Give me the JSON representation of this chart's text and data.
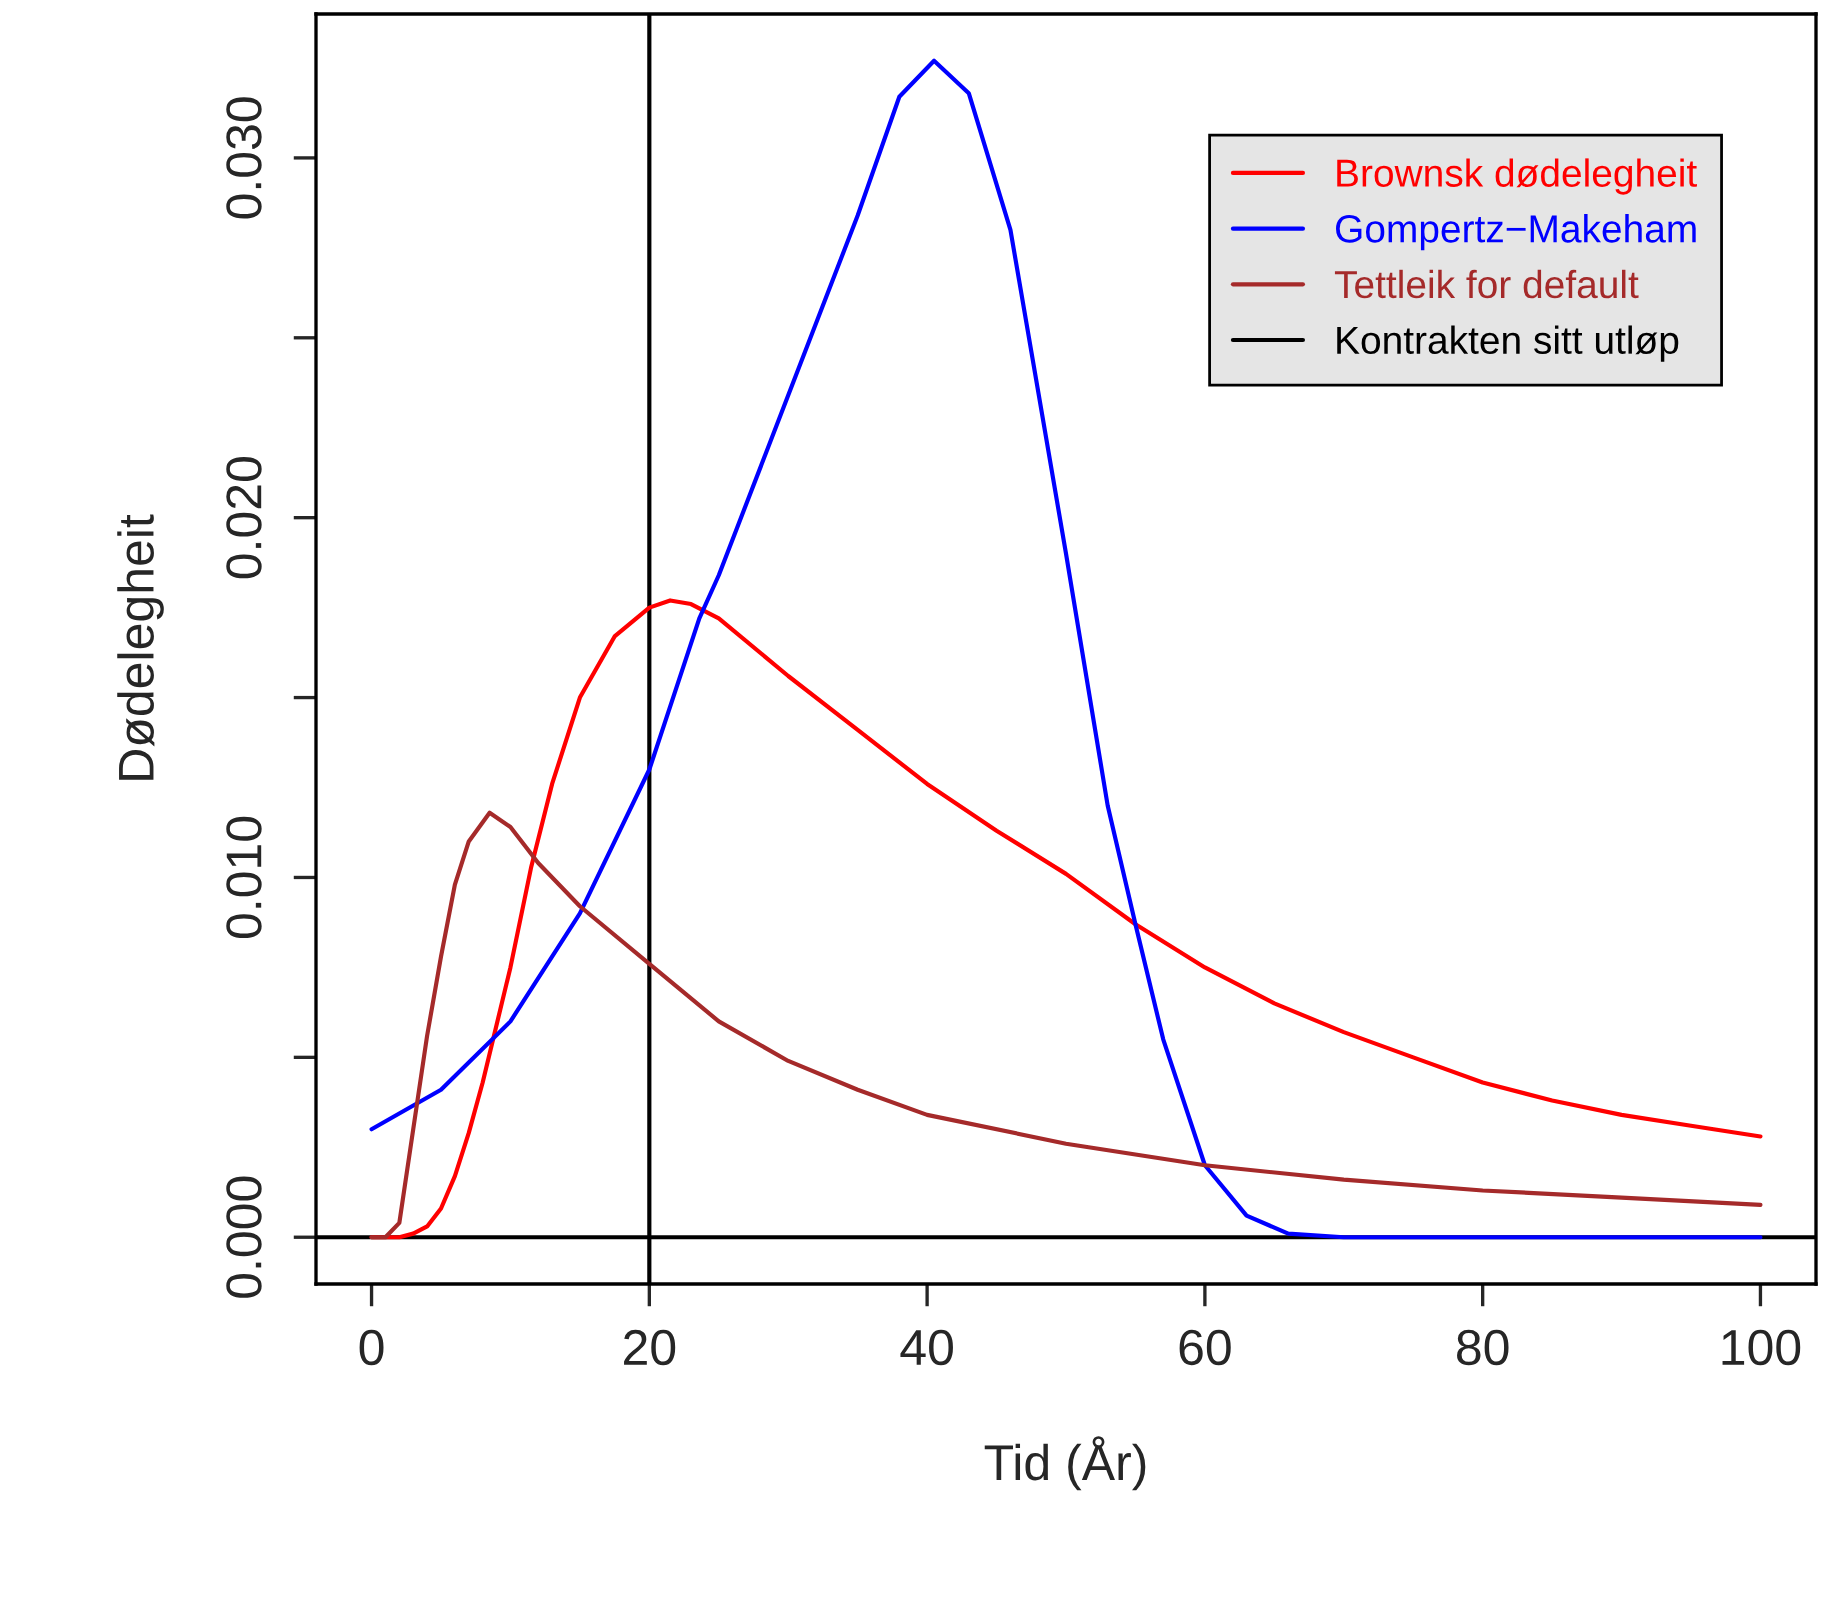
{
  "chart_data": {
    "type": "line",
    "xlabel": "Tid (År)",
    "ylabel": "Dødelegheit",
    "xlim": [
      -4,
      104
    ],
    "ylim": [
      -0.0013,
      0.034
    ],
    "xticks": [
      0,
      20,
      40,
      60,
      80,
      100
    ],
    "yticks": [
      {
        "value": 0,
        "label": "0.000"
      },
      {
        "value": 0.005,
        "label": null
      },
      {
        "value": 0.01,
        "label": "0.010"
      },
      {
        "value": 0.015,
        "label": null
      },
      {
        "value": 0.02,
        "label": "0.020"
      },
      {
        "value": 0.025,
        "label": null
      },
      {
        "value": 0.03,
        "label": "0.030"
      }
    ],
    "series": [
      {
        "name": "Brownsk dødelegheit",
        "color": "#ff0000",
        "x": [
          0,
          2,
          3,
          4,
          5,
          6,
          7,
          8,
          9,
          10,
          11.5,
          13,
          15,
          17.5,
          20,
          21.5,
          23,
          25,
          30,
          35,
          40,
          45,
          50,
          55,
          60,
          65,
          70,
          75,
          80,
          85,
          90,
          95,
          100
        ],
        "values": [
          0,
          0,
          0.0001,
          0.0003,
          0.0008,
          0.0017,
          0.0029,
          0.0043,
          0.0059,
          0.0075,
          0.0103,
          0.0126,
          0.015,
          0.0167,
          0.0175,
          0.0177,
          0.0176,
          0.0172,
          0.0156,
          0.0141,
          0.0126,
          0.0113,
          0.0101,
          0.0087,
          0.0075,
          0.0065,
          0.0057,
          0.005,
          0.0043,
          0.0038,
          0.0034,
          0.0031,
          0.0028
        ]
      },
      {
        "name": "Gompertz−Makeham",
        "color": "#0000ff",
        "x": [
          0,
          5,
          10,
          15,
          20,
          23.6,
          25,
          30,
          35,
          38,
          40.5,
          43,
          46,
          50,
          53,
          55,
          57,
          60,
          63,
          66,
          70,
          80,
          90,
          100
        ],
        "values": [
          0.003,
          0.0041,
          0.006,
          0.009,
          0.013,
          0.0172,
          0.0184,
          0.0234,
          0.0284,
          0.0317,
          0.0327,
          0.0318,
          0.028,
          0.019,
          0.012,
          0.0087,
          0.0055,
          0.002,
          0.0006,
          0.0001,
          0,
          0,
          0,
          0
        ]
      },
      {
        "name": "Tettleik for default",
        "color": "#a52a2a",
        "x": [
          0,
          1,
          2,
          3,
          4,
          5,
          6,
          7,
          8.5,
          10,
          12,
          15,
          20,
          25,
          30,
          35,
          40,
          50,
          60,
          70,
          80,
          90,
          100
        ],
        "values": [
          0,
          0,
          0.0004,
          0.003,
          0.0056,
          0.0078,
          0.0098,
          0.011,
          0.0118,
          0.0114,
          0.0104,
          0.0092,
          0.0076,
          0.006,
          0.0049,
          0.0041,
          0.0034,
          0.0026,
          0.002,
          0.0016,
          0.0013,
          0.0011,
          0.0009
        ]
      }
    ],
    "ref_lines": [
      {
        "axis": "y",
        "value": 0,
        "color": "#000000"
      },
      {
        "axis": "x",
        "value": 20,
        "label": "Kontrakten sitt utløp",
        "color": "#000000"
      }
    ],
    "legend": "top right",
    "grid": false
  }
}
